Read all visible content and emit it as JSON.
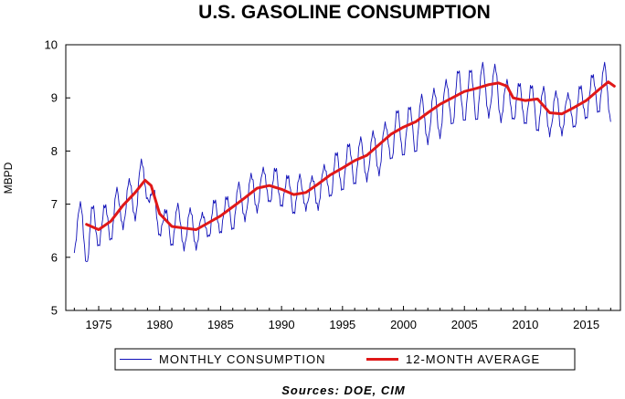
{
  "chart_data": {
    "type": "line",
    "title": "U.S. GASOLINE CONSUMPTION",
    "ylabel": "MBPD",
    "xlabel": "",
    "ylim": [
      5,
      10
    ],
    "xlim": [
      1972.3,
      2017.8
    ],
    "yticks": [
      5,
      6,
      7,
      8,
      9,
      10
    ],
    "xticks": [
      1975,
      1980,
      1985,
      1990,
      1995,
      2000,
      2005,
      2010,
      2015
    ],
    "source": "Sources:  DOE, CIM",
    "legend_position": "bottom-center",
    "grid": false,
    "series": [
      {
        "name": "MONTHLY CONSUMPTION",
        "color": "#1010b8",
        "style": "thin-seasonal",
        "x": [
          1973.0,
          1973.5,
          1974.0,
          1974.5,
          1975.0,
          1975.5,
          1976.0,
          1976.5,
          1977.0,
          1977.5,
          1978.0,
          1978.5,
          1979.0,
          1979.5,
          1980.0,
          1980.5,
          1981.0,
          1981.5,
          1982.0,
          1982.5,
          1983.0,
          1983.5,
          1984.0,
          1984.5,
          1985.0,
          1985.5,
          1986.0,
          1986.5,
          1987.0,
          1987.5,
          1988.0,
          1988.5,
          1989.0,
          1989.5,
          1990.0,
          1990.5,
          1991.0,
          1991.5,
          1992.0,
          1992.5,
          1993.0,
          1993.5,
          1994.0,
          1994.5,
          1995.0,
          1995.5,
          1996.0,
          1996.5,
          1997.0,
          1997.5,
          1998.0,
          1998.5,
          1999.0,
          1999.5,
          2000.0,
          2000.5,
          2001.0,
          2001.5,
          2002.0,
          2002.5,
          2003.0,
          2003.5,
          2004.0,
          2004.5,
          2005.0,
          2005.5,
          2006.0,
          2006.5,
          2007.0,
          2007.5,
          2008.0,
          2008.5,
          2009.0,
          2009.5,
          2010.0,
          2010.5,
          2011.0,
          2011.5,
          2012.0,
          2012.5,
          2013.0,
          2013.5,
          2014.0,
          2014.5,
          2015.0,
          2015.5,
          2016.0,
          2016.5,
          2017.0
        ],
        "values": [
          6.15,
          7.05,
          5.85,
          6.95,
          6.2,
          7.0,
          6.35,
          7.25,
          6.55,
          7.45,
          6.75,
          7.85,
          7.05,
          7.25,
          6.4,
          6.9,
          6.25,
          6.95,
          6.15,
          6.9,
          6.2,
          6.85,
          6.35,
          7.05,
          6.45,
          7.15,
          6.55,
          7.35,
          6.7,
          7.55,
          6.9,
          7.7,
          7.0,
          7.65,
          6.95,
          7.55,
          6.85,
          7.5,
          6.9,
          7.5,
          6.95,
          7.75,
          7.1,
          7.95,
          7.25,
          8.15,
          7.4,
          8.2,
          7.45,
          8.35,
          7.6,
          8.55,
          7.8,
          8.75,
          7.9,
          8.85,
          8.0,
          9.0,
          8.15,
          9.15,
          8.3,
          9.35,
          8.45,
          9.5,
          8.55,
          9.55,
          8.6,
          9.6,
          8.65,
          9.6,
          8.6,
          9.35,
          8.55,
          9.25,
          8.5,
          9.25,
          8.4,
          9.15,
          8.3,
          9.1,
          8.35,
          9.1,
          8.4,
          9.2,
          8.6,
          9.45,
          8.75,
          9.6,
          8.55
        ],
        "extremes": {
          "max": 9.6,
          "min": 5.8
        }
      },
      {
        "name": "12-MONTH AVERAGE",
        "color": "#e01818",
        "style": "thick",
        "x": [
          1974.0,
          1975.0,
          1976.0,
          1977.0,
          1978.0,
          1978.8,
          1979.3,
          1980.0,
          1981.0,
          1982.0,
          1983.0,
          1984.0,
          1985.0,
          1986.0,
          1987.0,
          1988.0,
          1989.0,
          1990.0,
          1991.0,
          1992.0,
          1993.0,
          1994.0,
          1995.0,
          1996.0,
          1997.0,
          1998.0,
          1999.0,
          2000.0,
          2001.0,
          2002.0,
          2003.0,
          2004.0,
          2005.0,
          2006.0,
          2007.0,
          2007.8,
          2008.5,
          2009.0,
          2010.0,
          2011.0,
          2012.0,
          2013.0,
          2014.0,
          2015.0,
          2016.0,
          2016.8,
          2017.3
        ],
        "values": [
          6.62,
          6.52,
          6.68,
          6.98,
          7.22,
          7.45,
          7.35,
          6.82,
          6.58,
          6.55,
          6.52,
          6.65,
          6.78,
          6.95,
          7.12,
          7.3,
          7.35,
          7.28,
          7.18,
          7.22,
          7.38,
          7.55,
          7.68,
          7.82,
          7.92,
          8.12,
          8.32,
          8.45,
          8.55,
          8.72,
          8.88,
          9.0,
          9.12,
          9.18,
          9.25,
          9.28,
          9.22,
          9.0,
          8.95,
          8.98,
          8.72,
          8.7,
          8.82,
          8.95,
          9.15,
          9.3,
          9.22
        ]
      }
    ]
  }
}
